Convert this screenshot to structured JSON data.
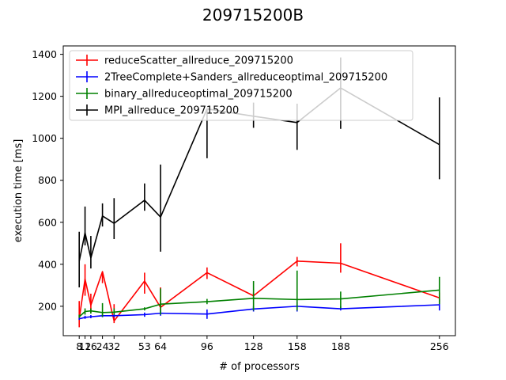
{
  "chart_data": {
    "type": "line",
    "title": "209715200B",
    "xlabel": "# of processors",
    "ylabel": "execution time [ms]",
    "xlim": [
      -3,
      267
    ],
    "ylim": [
      60,
      1440
    ],
    "x_ticks": [
      8,
      12,
      16,
      24,
      32,
      53,
      64,
      96,
      128,
      158,
      188,
      256
    ],
    "x_tick_labels": [
      "8",
      "12",
      "16",
      "24",
      "32",
      "53",
      "64",
      "96",
      "128",
      "158",
      "188",
      "256"
    ],
    "y_ticks": [
      200,
      400,
      600,
      800,
      1000,
      1200,
      1400
    ],
    "legend_position": "upper-left",
    "grid": false,
    "series": [
      {
        "name": "reduceScatter_allreduce_209715200",
        "color": "#ff0000",
        "x": [
          8,
          12,
          16,
          24,
          32,
          53,
          64,
          96,
          128,
          158,
          188,
          256
        ],
        "y": [
          140,
          330,
          205,
          365,
          130,
          320,
          195,
          360,
          250,
          415,
          405,
          240
        ],
        "err_low": [
          100,
          250,
          170,
          310,
          120,
          260,
          180,
          330,
          235,
          390,
          360,
          220
        ],
        "err_high": [
          225,
          400,
          260,
          365,
          210,
          360,
          290,
          385,
          265,
          435,
          500,
          265
        ]
      },
      {
        "name": "2TreeComplete+Sanders_allreduceoptimal_209715200",
        "color": "#0000ff",
        "x": [
          8,
          12,
          16,
          24,
          32,
          53,
          64,
          96,
          128,
          158,
          188,
          256
        ],
        "y": [
          140,
          147,
          150,
          155,
          155,
          160,
          167,
          163,
          187,
          200,
          188,
          207
        ],
        "err_low": [
          135,
          140,
          143,
          148,
          148,
          150,
          155,
          140,
          175,
          175,
          180,
          180
        ],
        "err_high": [
          145,
          155,
          158,
          162,
          162,
          170,
          180,
          185,
          200,
          220,
          200,
          235
        ]
      },
      {
        "name": "binary_allreduceoptimal_209715200",
        "color": "#008000",
        "x": [
          8,
          12,
          16,
          24,
          32,
          53,
          64,
          96,
          128,
          158,
          188,
          256
        ],
        "y": [
          150,
          175,
          178,
          170,
          172,
          188,
          210,
          222,
          238,
          232,
          235,
          277
        ],
        "err_low": [
          145,
          160,
          165,
          150,
          160,
          180,
          160,
          210,
          180,
          180,
          190,
          210
        ],
        "err_high": [
          160,
          190,
          190,
          215,
          190,
          195,
          285,
          235,
          320,
          370,
          270,
          340
        ]
      },
      {
        "name": "MPI_allreduce_209715200",
        "color": "#000000",
        "x": [
          8,
          12,
          16,
          24,
          32,
          53,
          64,
          96,
          128,
          158,
          188,
          256
        ],
        "y": [
          415,
          550,
          430,
          630,
          595,
          705,
          625,
          1140,
          1105,
          1075,
          1240,
          970
        ],
        "err_low": [
          290,
          490,
          380,
          580,
          520,
          655,
          460,
          905,
          1050,
          945,
          1045,
          805
        ],
        "err_high": [
          555,
          675,
          535,
          690,
          715,
          785,
          875,
          1140,
          1170,
          1165,
          1385,
          1195
        ]
      }
    ]
  }
}
